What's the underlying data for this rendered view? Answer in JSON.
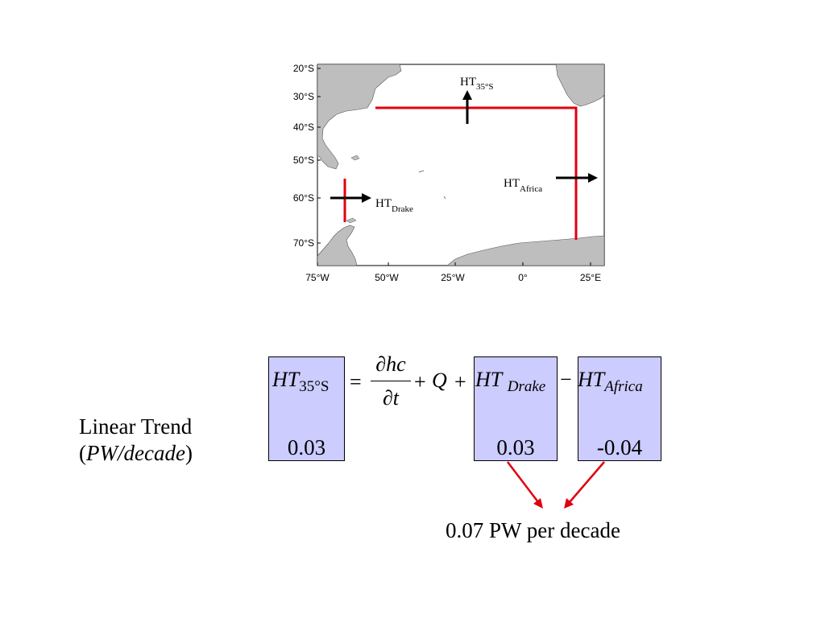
{
  "map": {
    "lat_labels": [
      "20°S",
      "30°S",
      "40°S",
      "50°S",
      "60°S",
      "70°S"
    ],
    "lon_labels": [
      "75°W",
      "50°W",
      "25°W",
      "0°",
      "25°E"
    ],
    "transport_labels": {
      "north": {
        "base": "HT",
        "sub": "35°S"
      },
      "drake": {
        "base": "HT",
        "sub": "Drake"
      },
      "africa": {
        "base": "HT",
        "sub": "Africa"
      }
    },
    "colors": {
      "land": "#bebebe",
      "section_line": "#e0000f",
      "arrow": "#000000"
    }
  },
  "equation": {
    "lhs": {
      "base": "HT",
      "sub": "35°S"
    },
    "equals": "=",
    "numerator": "∂hc",
    "denominator": "∂t",
    "plus1": "+",
    "q": "Q",
    "plus2": "+",
    "drake": {
      "base": "HT",
      "sub": "Drake"
    },
    "minus": "−",
    "africa": {
      "base": "HT",
      "sub": "Africa"
    },
    "box_color": "#ccccff"
  },
  "trends": {
    "title_line1": "Linear Trend",
    "title_line2": "PW/decade",
    "ht35s": "0.03",
    "drake": "0.03",
    "africa": "-0.04",
    "sum_label": "0.07 PW per decade",
    "arrow_color": "#e0000f"
  }
}
